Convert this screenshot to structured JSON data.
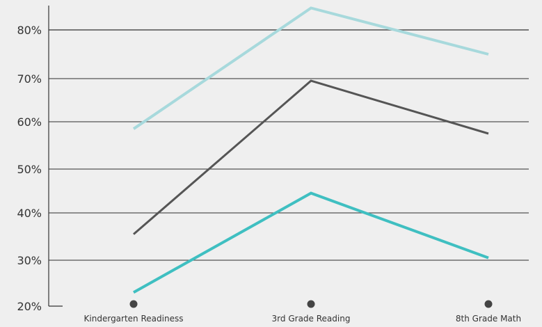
{
  "chart_data": {
    "type": "line",
    "categories": [
      "Kindergarten Readiness",
      "3rd Grade Reading",
      "8th Grade Math"
    ],
    "y_ticks": [
      "20%",
      "30%",
      "40%",
      "50%",
      "60%",
      "70%",
      "80%"
    ],
    "ylim": [
      20,
      85
    ],
    "grid": true,
    "series": [
      {
        "values": [
          58.5,
          84.5,
          75
        ],
        "color": "#a7d9dc"
      },
      {
        "values": [
          35.5,
          69.5,
          57.5
        ],
        "color": "#555555"
      },
      {
        "values": [
          23,
          44.5,
          30.5
        ],
        "color": "#3fbfc1"
      }
    ]
  }
}
